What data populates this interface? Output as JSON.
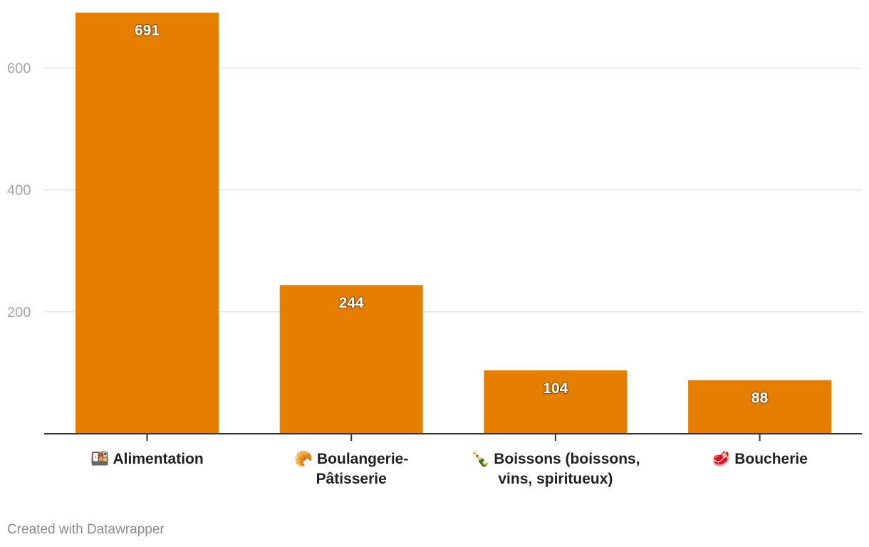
{
  "chart_data": {
    "type": "bar",
    "categories": [
      [
        "🍱 Alimentation"
      ],
      [
        "🥐 Boulangerie-",
        "Pâtisserie"
      ],
      [
        "🍾 Boissons (boissons,",
        "vins, spiritueux)"
      ],
      [
        "🥩 Boucherie"
      ]
    ],
    "values": [
      691,
      244,
      104,
      88
    ],
    "value_labels": [
      "691",
      "244",
      "104",
      "88"
    ],
    "yticks": [
      200,
      400,
      600
    ],
    "ytick_labels": [
      "200",
      "400",
      "600"
    ],
    "ylim": [
      0,
      700
    ],
    "grid": true,
    "bar_color": "#e67e00",
    "title": "",
    "xlabel": "",
    "ylabel": ""
  },
  "footer": {
    "credit": "Created with Datawrapper"
  }
}
